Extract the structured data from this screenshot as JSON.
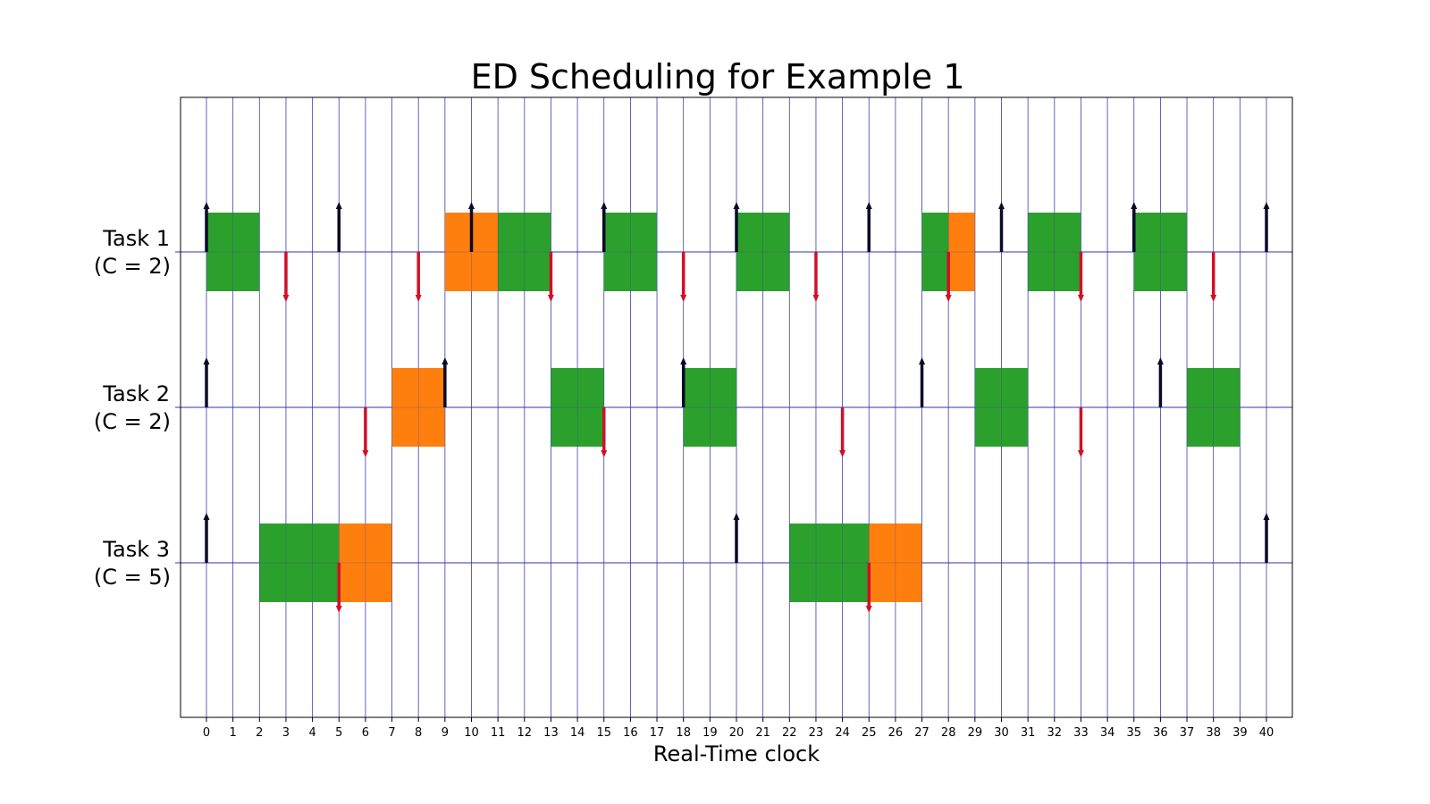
{
  "chart_data": {
    "type": "gantt",
    "title": "ED Scheduling for Example 1",
    "xlabel": "Real-Time clock",
    "xlim": [
      -1,
      41
    ],
    "xticks": [
      0,
      1,
      2,
      3,
      4,
      5,
      6,
      7,
      8,
      9,
      10,
      11,
      12,
      13,
      14,
      15,
      16,
      17,
      18,
      19,
      20,
      21,
      22,
      23,
      24,
      25,
      26,
      27,
      28,
      29,
      30,
      31,
      32,
      33,
      34,
      35,
      36,
      37,
      38,
      39,
      40
    ],
    "grid": true,
    "colors": {
      "on_time": "#2ca02c",
      "late": "#ff7f0e",
      "release_arrow": "#0a0a2a",
      "deadline_arrow": "#d0102a",
      "grid": "#3333aa"
    },
    "tasks": [
      {
        "name": "Task 1",
        "cost": "(C = 2)",
        "executions": [
          {
            "start": 0,
            "end": 2,
            "status": "on_time"
          },
          {
            "start": 9,
            "end": 11,
            "status": "late"
          },
          {
            "start": 11,
            "end": 13,
            "status": "on_time"
          },
          {
            "start": 15,
            "end": 17,
            "status": "on_time"
          },
          {
            "start": 20,
            "end": 22,
            "status": "on_time"
          },
          {
            "start": 27,
            "end": 28,
            "status": "on_time"
          },
          {
            "start": 28,
            "end": 29,
            "status": "late"
          },
          {
            "start": 31,
            "end": 33,
            "status": "on_time"
          },
          {
            "start": 35,
            "end": 37,
            "status": "on_time"
          }
        ],
        "releases": [
          0,
          5,
          10,
          15,
          20,
          25,
          30,
          35,
          40
        ],
        "deadlines": [
          3,
          8,
          13,
          18,
          23,
          28,
          33,
          38
        ]
      },
      {
        "name": "Task 2",
        "cost": "(C = 2)",
        "executions": [
          {
            "start": 7,
            "end": 9,
            "status": "late"
          },
          {
            "start": 13,
            "end": 15,
            "status": "on_time"
          },
          {
            "start": 18,
            "end": 20,
            "status": "on_time"
          },
          {
            "start": 29,
            "end": 31,
            "status": "on_time"
          },
          {
            "start": 37,
            "end": 39,
            "status": "on_time"
          }
        ],
        "releases": [
          0,
          9,
          18,
          27,
          36
        ],
        "deadlines": [
          6,
          15,
          24,
          33
        ]
      },
      {
        "name": "Task 3",
        "cost": "(C = 5)",
        "executions": [
          {
            "start": 2,
            "end": 5,
            "status": "on_time"
          },
          {
            "start": 5,
            "end": 7,
            "status": "late"
          },
          {
            "start": 22,
            "end": 25,
            "status": "on_time"
          },
          {
            "start": 25,
            "end": 27,
            "status": "late"
          }
        ],
        "releases": [
          0,
          20,
          40
        ],
        "deadlines": [
          5,
          25
        ]
      }
    ]
  }
}
